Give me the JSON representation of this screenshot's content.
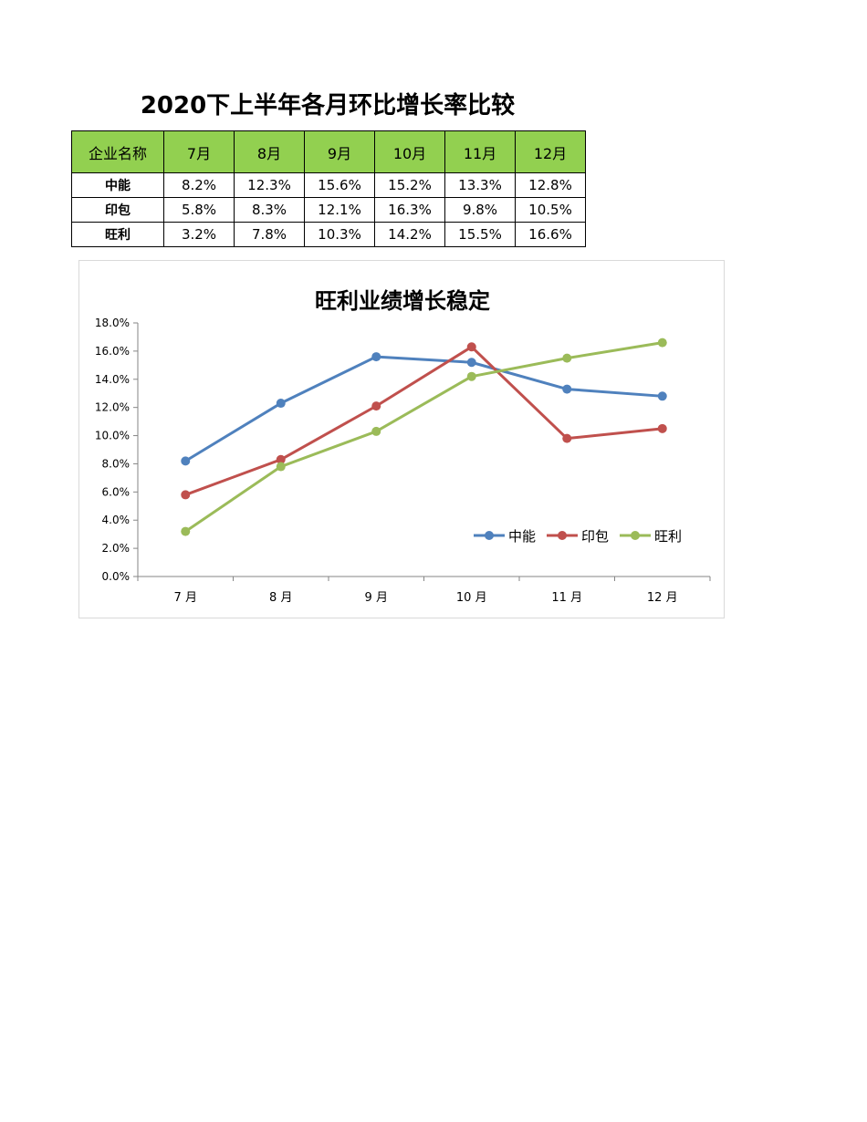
{
  "document": {
    "title": "2020下上半年各月环比增长率比较"
  },
  "table": {
    "header_label": "企业名称",
    "months": [
      "7月",
      "8月",
      "9月",
      "10月",
      "11月",
      "12月"
    ],
    "rows": [
      {
        "name": "中能",
        "values": [
          "8.2%",
          "12.3%",
          "15.6%",
          "15.2%",
          "13.3%",
          "12.8%"
        ]
      },
      {
        "name": "印包",
        "values": [
          "5.8%",
          "8.3%",
          "12.1%",
          "16.3%",
          "9.8%",
          "10.5%"
        ]
      },
      {
        "name": "旺利",
        "values": [
          "3.2%",
          "7.8%",
          "10.3%",
          "14.2%",
          "15.5%",
          "16.6%"
        ]
      }
    ]
  },
  "chart_data": {
    "type": "line",
    "title": "旺利业绩增长稳定",
    "xlabel": "",
    "ylabel": "",
    "categories": [
      "7 月",
      "8 月",
      "9 月",
      "10 月",
      "11 月",
      "12 月"
    ],
    "ylim": [
      0,
      18
    ],
    "yticks": [
      "0.0%",
      "2.0%",
      "4.0%",
      "6.0%",
      "8.0%",
      "10.0%",
      "12.0%",
      "14.0%",
      "16.0%",
      "18.0%"
    ],
    "grid": false,
    "legend_position": "bottom-right-inside",
    "series": [
      {
        "name": "中能",
        "color": "#4f81bd",
        "values": [
          8.2,
          12.3,
          15.6,
          15.2,
          13.3,
          12.8
        ]
      },
      {
        "name": "印包",
        "color": "#c0504d",
        "values": [
          5.8,
          8.3,
          12.1,
          16.3,
          9.8,
          10.5
        ]
      },
      {
        "name": "旺利",
        "color": "#9bbb59",
        "values": [
          3.2,
          7.8,
          10.3,
          14.2,
          15.5,
          16.6
        ]
      }
    ]
  }
}
